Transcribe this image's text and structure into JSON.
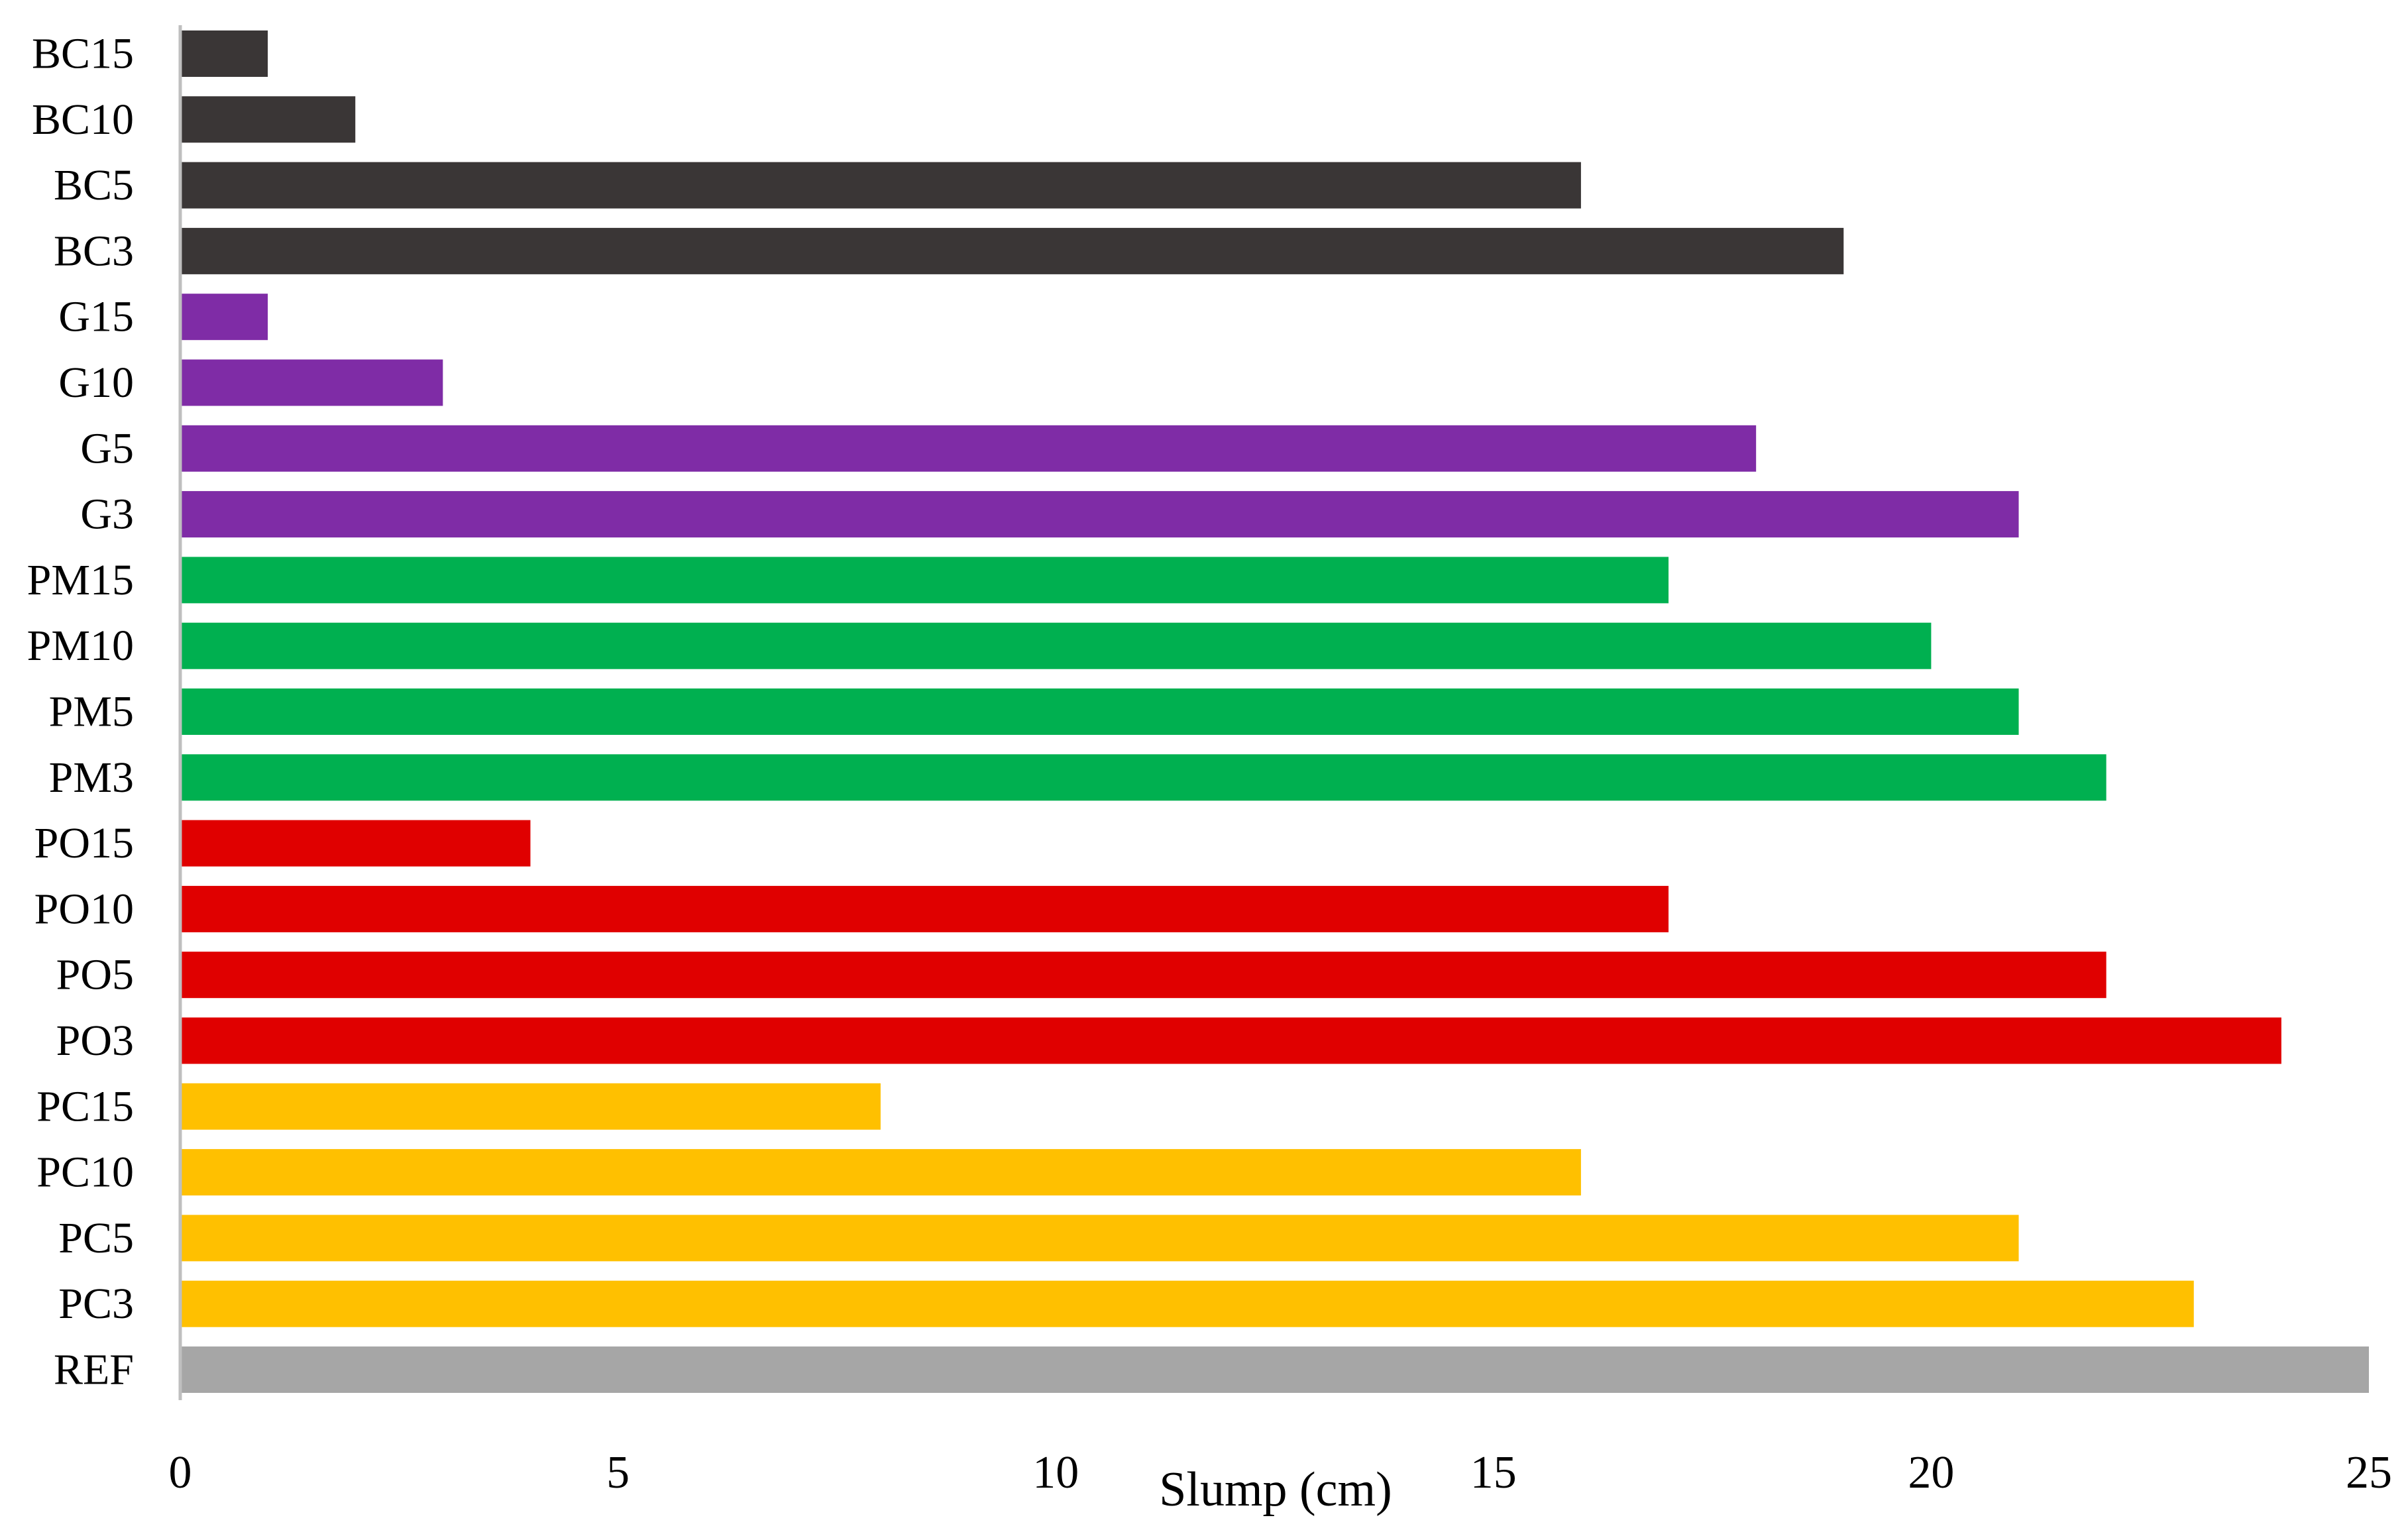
{
  "chart_data": {
    "type": "bar",
    "orientation": "horizontal",
    "title": "",
    "xlabel": "Slump (cm)",
    "ylabel": "",
    "xlim": [
      0,
      25
    ],
    "x_ticks": [
      0,
      5,
      10,
      15,
      20,
      25
    ],
    "x_tick_labels": [
      "0",
      "5",
      "10",
      "15",
      "20",
      "25"
    ],
    "grid": false,
    "legend": "none",
    "categories": [
      "REF",
      "PC3",
      "PC5",
      "PC10",
      "PC15",
      "PO3",
      "PO5",
      "PO10",
      "PO15",
      "PM3",
      "PM5",
      "PM10",
      "PM15",
      "G3",
      "G5",
      "G10",
      "G15",
      "BC3",
      "BC5",
      "BC10",
      "BC15"
    ],
    "values": [
      25,
      23,
      21,
      16,
      8,
      24,
      22,
      17,
      4,
      22,
      21,
      20,
      17,
      21,
      18,
      3,
      1,
      19,
      16,
      2,
      1
    ],
    "bar_colors": [
      "#a6a6a6",
      "#ffc000",
      "#ffc000",
      "#ffc000",
      "#ffc000",
      "#e00000",
      "#e00000",
      "#e00000",
      "#e00000",
      "#00b050",
      "#00b050",
      "#00b050",
      "#00b050",
      "#7f2ca6",
      "#7f2ca6",
      "#7f2ca6",
      "#7f2ca6",
      "#3a3636",
      "#3a3636",
      "#3a3636",
      "#3a3636"
    ],
    "axis_color": "#bfbfbf"
  }
}
